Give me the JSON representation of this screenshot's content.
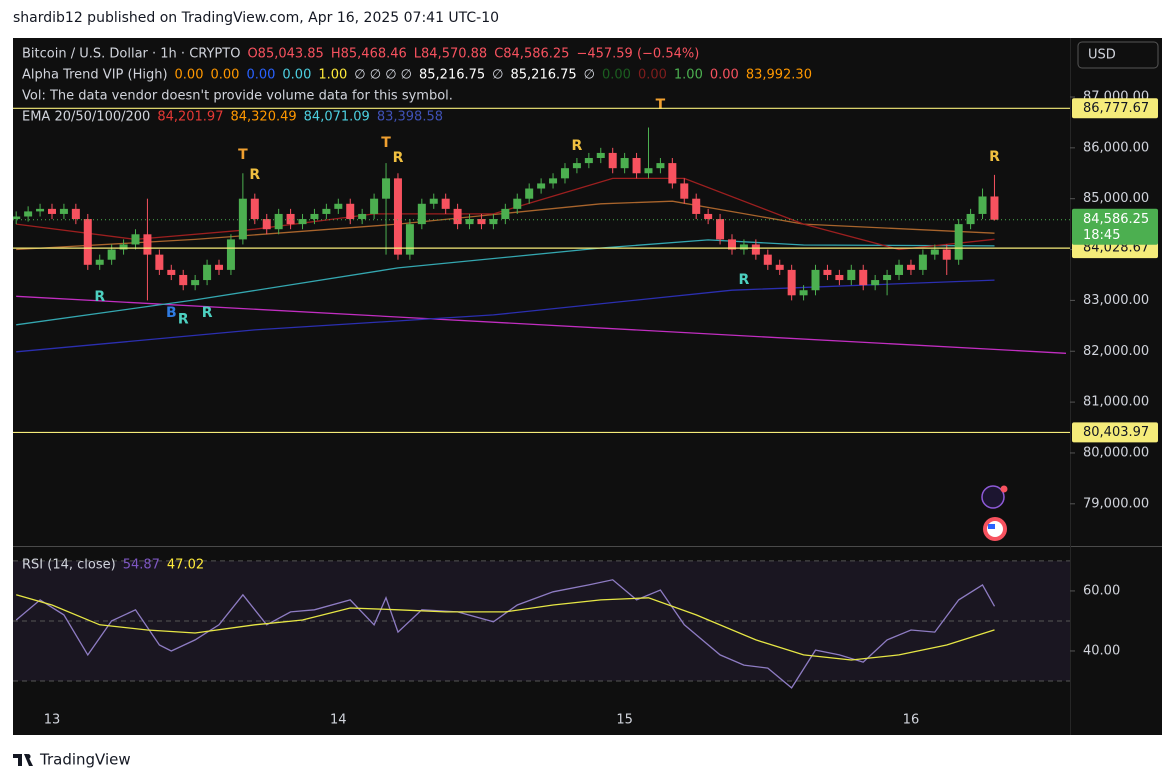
{
  "header": {
    "text": "shardib12 published on TradingView.com, Apr 16, 2025 07:41 UTC-10"
  },
  "footer": {
    "brand": "TradingView"
  },
  "chart_data": [
    {
      "type": "candlestick",
      "currency": "USD",
      "legend": [
        [
          {
            "text": "Bitcoin / U.S. Dollar · 1h · CRYPTO",
            "color": "#d1d4dc"
          },
          {
            "text": "O85,043.85",
            "color": "#f7525f"
          },
          {
            "text": "H85,468.46",
            "color": "#f7525f"
          },
          {
            "text": "L84,570.88",
            "color": "#f7525f"
          },
          {
            "text": "C84,586.25",
            "color": "#f7525f"
          },
          {
            "text": "−457.59 (−0.54%)",
            "color": "#f7525f"
          }
        ],
        [
          {
            "text": "Alpha Trend VIP (High)",
            "color": "#d1d4dc"
          },
          {
            "text": "0.00",
            "color": "#ff9800"
          },
          {
            "text": "0.00",
            "color": "#ff9800"
          },
          {
            "text": "0.00",
            "color": "#2962ff"
          },
          {
            "text": "0.00",
            "color": "#4dd0e1"
          },
          {
            "text": "1.00",
            "color": "#ffeb3b"
          },
          {
            "text": "∅ ∅ ∅ ∅",
            "color": "#d1d4dc"
          },
          {
            "text": "85,216.75",
            "color": "#ffffff"
          },
          {
            "text": "∅",
            "color": "#d1d4dc"
          },
          {
            "text": "85,216.75",
            "color": "#ffffff"
          },
          {
            "text": "∅",
            "color": "#d1d4dc"
          },
          {
            "text": "0.00",
            "color": "#1b5e20"
          },
          {
            "text": "0.00",
            "color": "#7f1d1d"
          },
          {
            "text": "1.00",
            "color": "#4caf50"
          },
          {
            "text": "0.00",
            "color": "#f7525f"
          },
          {
            "text": "83,992.30",
            "color": "#ff9800"
          }
        ],
        [
          {
            "text": "Vol: The data vendor doesn't provide volume data for this symbol.",
            "color": "#d1d4dc"
          }
        ],
        [
          {
            "text": "EMA 20/50/100/200",
            "color": "#d1d4dc"
          },
          {
            "text": "84,201.97",
            "color": "#e53935"
          },
          {
            "text": "84,320.49",
            "color": "#ff9800"
          },
          {
            "text": "84,071.09",
            "color": "#4dd0e1"
          },
          {
            "text": "83,398.58",
            "color": "#3f51b5"
          }
        ]
      ],
      "categories": [
        null,
        null,
        null,
        "13",
        null,
        null,
        null,
        null,
        null,
        null,
        null,
        null,
        null,
        null,
        null,
        null,
        null,
        null,
        null,
        null,
        null,
        null,
        null,
        null,
        null,
        null,
        null,
        "14",
        null,
        null,
        null,
        null,
        null,
        null,
        null,
        null,
        null,
        null,
        null,
        null,
        null,
        null,
        null,
        null,
        null,
        null,
        null,
        null,
        null,
        null,
        null,
        "15",
        null,
        null,
        null,
        null,
        null,
        null,
        null,
        null,
        null,
        null,
        null,
        null,
        null,
        null,
        null,
        null,
        null,
        null,
        null,
        null,
        null,
        null,
        null,
        "16",
        null,
        null,
        null,
        null,
        null,
        null,
        null
      ],
      "open": [
        84600,
        84650,
        84750,
        84800,
        84700,
        84800,
        84600,
        83700,
        83800,
        84000,
        84100,
        84300,
        83900,
        83600,
        83500,
        83300,
        83400,
        83700,
        83600,
        84200,
        85000,
        84600,
        84400,
        84700,
        84500,
        84600,
        84700,
        84800,
        84900,
        84600,
        84700,
        85000,
        85400,
        83900,
        84500,
        84900,
        85000,
        84800,
        84500,
        84600,
        84500,
        84600,
        84800,
        85000,
        85200,
        85300,
        85400,
        85600,
        85700,
        85800,
        85900,
        85600,
        85800,
        85500,
        85600,
        85700,
        85300,
        85000,
        84700,
        84600,
        84200,
        84000,
        84100,
        83900,
        83700,
        83600,
        83100,
        83200,
        83600,
        83500,
        83400,
        83600,
        83300,
        83400,
        83500,
        83700,
        83600,
        83900,
        84000,
        83800,
        84500,
        84700,
        85043.85
      ],
      "high": [
        84750,
        84850,
        84900,
        84900,
        84900,
        84900,
        84700,
        83900,
        84100,
        84200,
        84400,
        85000,
        84000,
        83700,
        83600,
        83500,
        83800,
        83800,
        84300,
        85500,
        85100,
        84700,
        84800,
        84800,
        84700,
        84800,
        84900,
        85000,
        85000,
        84800,
        85100,
        85700,
        85500,
        84600,
        85000,
        85100,
        85100,
        84900,
        84700,
        84700,
        84700,
        84900,
        85100,
        85300,
        85400,
        85500,
        85700,
        85800,
        85900,
        86000,
        86000,
        85900,
        85900,
        86400,
        85800,
        85800,
        85400,
        85100,
        84800,
        84700,
        84300,
        84200,
        84200,
        84000,
        83800,
        83700,
        83300,
        83700,
        83700,
        83600,
        83700,
        83700,
        83500,
        83600,
        83800,
        83800,
        84000,
        84100,
        84100,
        84600,
        84800,
        85200,
        85468.46
      ],
      "low": [
        84500,
        84550,
        84650,
        84600,
        84600,
        84500,
        83600,
        83600,
        83700,
        83900,
        84000,
        83000,
        83500,
        83400,
        83200,
        83200,
        83300,
        83500,
        83500,
        84100,
        84500,
        84300,
        84300,
        84400,
        84400,
        84500,
        84600,
        84700,
        84500,
        84500,
        84600,
        83900,
        83800,
        83800,
        84400,
        84800,
        84700,
        84400,
        84400,
        84400,
        84400,
        84500,
        84700,
        84900,
        85100,
        85200,
        85300,
        85500,
        85600,
        85700,
        85500,
        85500,
        85400,
        85400,
        85500,
        85200,
        84900,
        84600,
        84500,
        84100,
        83900,
        83900,
        83800,
        83600,
        83500,
        83000,
        83000,
        83100,
        83400,
        83300,
        83300,
        83200,
        83200,
        83100,
        83400,
        83500,
        83500,
        83800,
        83500,
        83700,
        84400,
        84600,
        84570.88
      ],
      "close": [
        84650,
        84750,
        84800,
        84700,
        84800,
        84600,
        83700,
        83800,
        84000,
        84100,
        84300,
        83900,
        83600,
        83500,
        83300,
        83400,
        83700,
        83600,
        84200,
        85000,
        84600,
        84400,
        84700,
        84500,
        84600,
        84700,
        84800,
        84900,
        84600,
        84700,
        85000,
        85400,
        83900,
        84500,
        84900,
        85000,
        84800,
        84500,
        84600,
        84500,
        84600,
        84800,
        85000,
        85200,
        85300,
        85400,
        85600,
        85700,
        85800,
        85900,
        85600,
        85800,
        85500,
        85600,
        85700,
        85300,
        85000,
        84700,
        84600,
        84200,
        84000,
        84100,
        83900,
        83700,
        83600,
        83100,
        83200,
        83600,
        83500,
        83400,
        83600,
        83300,
        83400,
        83500,
        83700,
        83600,
        83900,
        84000,
        83800,
        84500,
        84700,
        85043.85,
        84586.25
      ],
      "up_color": "#4caf50",
      "down_color": "#f7525f",
      "ylim": [
        78190,
        88160
      ],
      "yticks": [
        {
          "value": 87000,
          "label": "87,000.00"
        },
        {
          "value": 86000,
          "label": "86,000.00"
        },
        {
          "value": 85000,
          "label": "85,000.00"
        },
        {
          "value": 84000,
          "label": "84,000.00"
        },
        {
          "value": 83000,
          "label": "83,000.00"
        },
        {
          "value": 82000,
          "label": "82,000.00"
        },
        {
          "value": 81000,
          "label": "81,000.00"
        },
        {
          "value": 80000,
          "label": "80,000.00"
        },
        {
          "value": 79000,
          "label": "79,000.00"
        }
      ],
      "levels": [
        {
          "value": 86777.67,
          "label": "86,777.67"
        },
        {
          "value": 84028.67,
          "label": "84,028.67"
        },
        {
          "value": 80403.97,
          "label": "80,403.97"
        }
      ],
      "level_color": "#f5ec7a",
      "price_label": {
        "value": 84586.25,
        "label": "84,586.25",
        "countdown": "18:45"
      },
      "overlays": [
        {
          "color": "#c12ec1",
          "x": [
            0,
            88
          ],
          "values": [
            83080,
            81960
          ]
        },
        {
          "color": "#2b2fb0",
          "x": [
            0,
            20,
            40,
            60,
            82
          ],
          "values": [
            81990,
            82420,
            82715,
            83200,
            83398.58
          ]
        },
        {
          "color": "#34a7b0",
          "x": [
            0,
            15,
            32,
            49,
            58,
            66,
            82
          ],
          "values": [
            82520,
            83010,
            83640,
            84030,
            84190,
            84090,
            84071.09
          ]
        },
        {
          "color": "#a8642c",
          "x": [
            0,
            15,
            32,
            49,
            55,
            66,
            82
          ],
          "values": [
            84000,
            84200,
            84500,
            84900,
            84950,
            84500,
            84320.49
          ]
        },
        {
          "color": "#9c1f1f",
          "x": [
            0,
            10,
            20,
            30,
            40,
            50,
            56,
            66,
            74,
            82
          ],
          "values": [
            84500,
            84200,
            84400,
            84700,
            84700,
            85400,
            85400,
            84500,
            84000,
            84201.97
          ]
        }
      ],
      "annotations": [
        {
          "text": "T",
          "x": 19,
          "y": 85860,
          "color": "#f0a030"
        },
        {
          "text": "R",
          "x": 20,
          "y": 85470,
          "color": "#f0c040"
        },
        {
          "text": "T",
          "x": 31,
          "y": 86100,
          "color": "#f0a030"
        },
        {
          "text": "R",
          "x": 32,
          "y": 85800,
          "color": "#f0c040"
        },
        {
          "text": "R",
          "x": 47,
          "y": 86040,
          "color": "#f0c040"
        },
        {
          "text": "T",
          "x": 54,
          "y": 86840,
          "color": "#f0a030"
        },
        {
          "text": "R",
          "x": 82,
          "y": 85820,
          "color": "#f0c040"
        },
        {
          "text": "R",
          "x": 7,
          "y": 83070,
          "color": "#4dd0c0"
        },
        {
          "text": "B",
          "x": 13,
          "y": 82750,
          "color": "#2f7be0"
        },
        {
          "text": "R",
          "x": 14,
          "y": 82620,
          "color": "#4dd0c0"
        },
        {
          "text": "R",
          "x": 16,
          "y": 82750,
          "color": "#4dd0c0"
        },
        {
          "text": "R",
          "x": 61,
          "y": 83400,
          "color": "#4dd0c0"
        }
      ]
    },
    {
      "type": "line",
      "legend": [
        [
          {
            "text": "RSI (14, close)",
            "color": "#d1d4dc"
          },
          {
            "text": "54.87",
            "color": "#7e57c2"
          },
          {
            "text": "47.02",
            "color": "#ffeb3b"
          }
        ]
      ],
      "ylim": [
        21,
        74.3
      ],
      "yticks": [
        {
          "value": 60,
          "label": "60.00"
        },
        {
          "value": 40,
          "label": "40.00"
        }
      ],
      "bands": [
        70,
        50,
        30
      ],
      "series": [
        {
          "color": "#8e7cc3",
          "x": [
            0,
            2,
            4,
            6,
            8,
            10,
            12,
            13,
            15,
            17,
            19,
            21,
            23,
            25,
            28,
            30,
            31,
            32,
            34,
            37,
            40,
            42,
            45,
            48,
            50,
            52,
            54,
            56,
            59,
            61,
            63,
            65,
            67,
            69,
            71,
            73,
            75,
            77,
            79,
            81,
            82
          ],
          "values": [
            50.3,
            57,
            52,
            38.7,
            50,
            53.7,
            42,
            40,
            43.7,
            48.7,
            58.7,
            48.7,
            53,
            53.7,
            57,
            48.7,
            57.7,
            46.3,
            53.7,
            53,
            49.7,
            55.3,
            59.7,
            62,
            63.7,
            57,
            60.3,
            48.7,
            38.7,
            35.3,
            34.3,
            27.7,
            40.3,
            38.7,
            36.3,
            43.7,
            47,
            46.3,
            57,
            62,
            54.87
          ]
        },
        {
          "color": "#e6e645",
          "x": [
            0,
            3,
            7,
            11,
            15,
            20,
            24,
            28,
            32,
            36,
            41,
            45,
            49,
            53,
            57,
            62,
            66,
            70,
            74,
            78,
            82
          ],
          "values": [
            58.7,
            55.3,
            48.7,
            47,
            46,
            48.7,
            50.3,
            54.3,
            53.7,
            53,
            53,
            55.3,
            57,
            57.7,
            52,
            43.7,
            38.7,
            37,
            38.7,
            42,
            47.02
          ]
        }
      ]
    }
  ]
}
